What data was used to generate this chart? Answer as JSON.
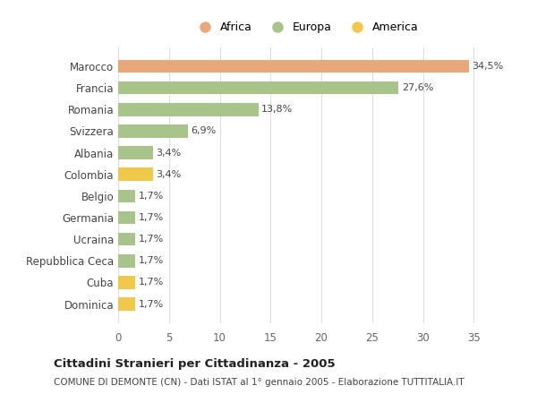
{
  "categories": [
    "Dominica",
    "Cuba",
    "Repubblica Ceca",
    "Ucraina",
    "Germania",
    "Belgio",
    "Colombia",
    "Albania",
    "Svizzera",
    "Romania",
    "Francia",
    "Marocco"
  ],
  "values": [
    1.7,
    1.7,
    1.7,
    1.7,
    1.7,
    1.7,
    3.4,
    3.4,
    6.9,
    13.8,
    27.6,
    34.5
  ],
  "labels": [
    "1,7%",
    "1,7%",
    "1,7%",
    "1,7%",
    "1,7%",
    "1,7%",
    "3,4%",
    "3,4%",
    "6,9%",
    "13,8%",
    "27,6%",
    "34,5%"
  ],
  "colors": [
    "#f0c84a",
    "#f0c84a",
    "#a8c48a",
    "#a8c48a",
    "#a8c48a",
    "#a8c48a",
    "#f0c84a",
    "#a8c48a",
    "#a8c48a",
    "#a8c48a",
    "#a8c48a",
    "#e8a87c"
  ],
  "legend_labels": [
    "Africa",
    "Europa",
    "America"
  ],
  "legend_colors": [
    "#e8a87c",
    "#a8c48a",
    "#f0c84a"
  ],
  "title": "Cittadini Stranieri per Cittadinanza - 2005",
  "subtitle": "COMUNE DI DEMONTE (CN) - Dati ISTAT al 1° gennaio 2005 - Elaborazione TUTTITALIA.IT",
  "xlim": [
    0,
    37
  ],
  "xticks": [
    0,
    5,
    10,
    15,
    20,
    25,
    30,
    35
  ],
  "background_color": "#ffffff",
  "grid_color": "#dddddd",
  "bar_height": 0.6
}
